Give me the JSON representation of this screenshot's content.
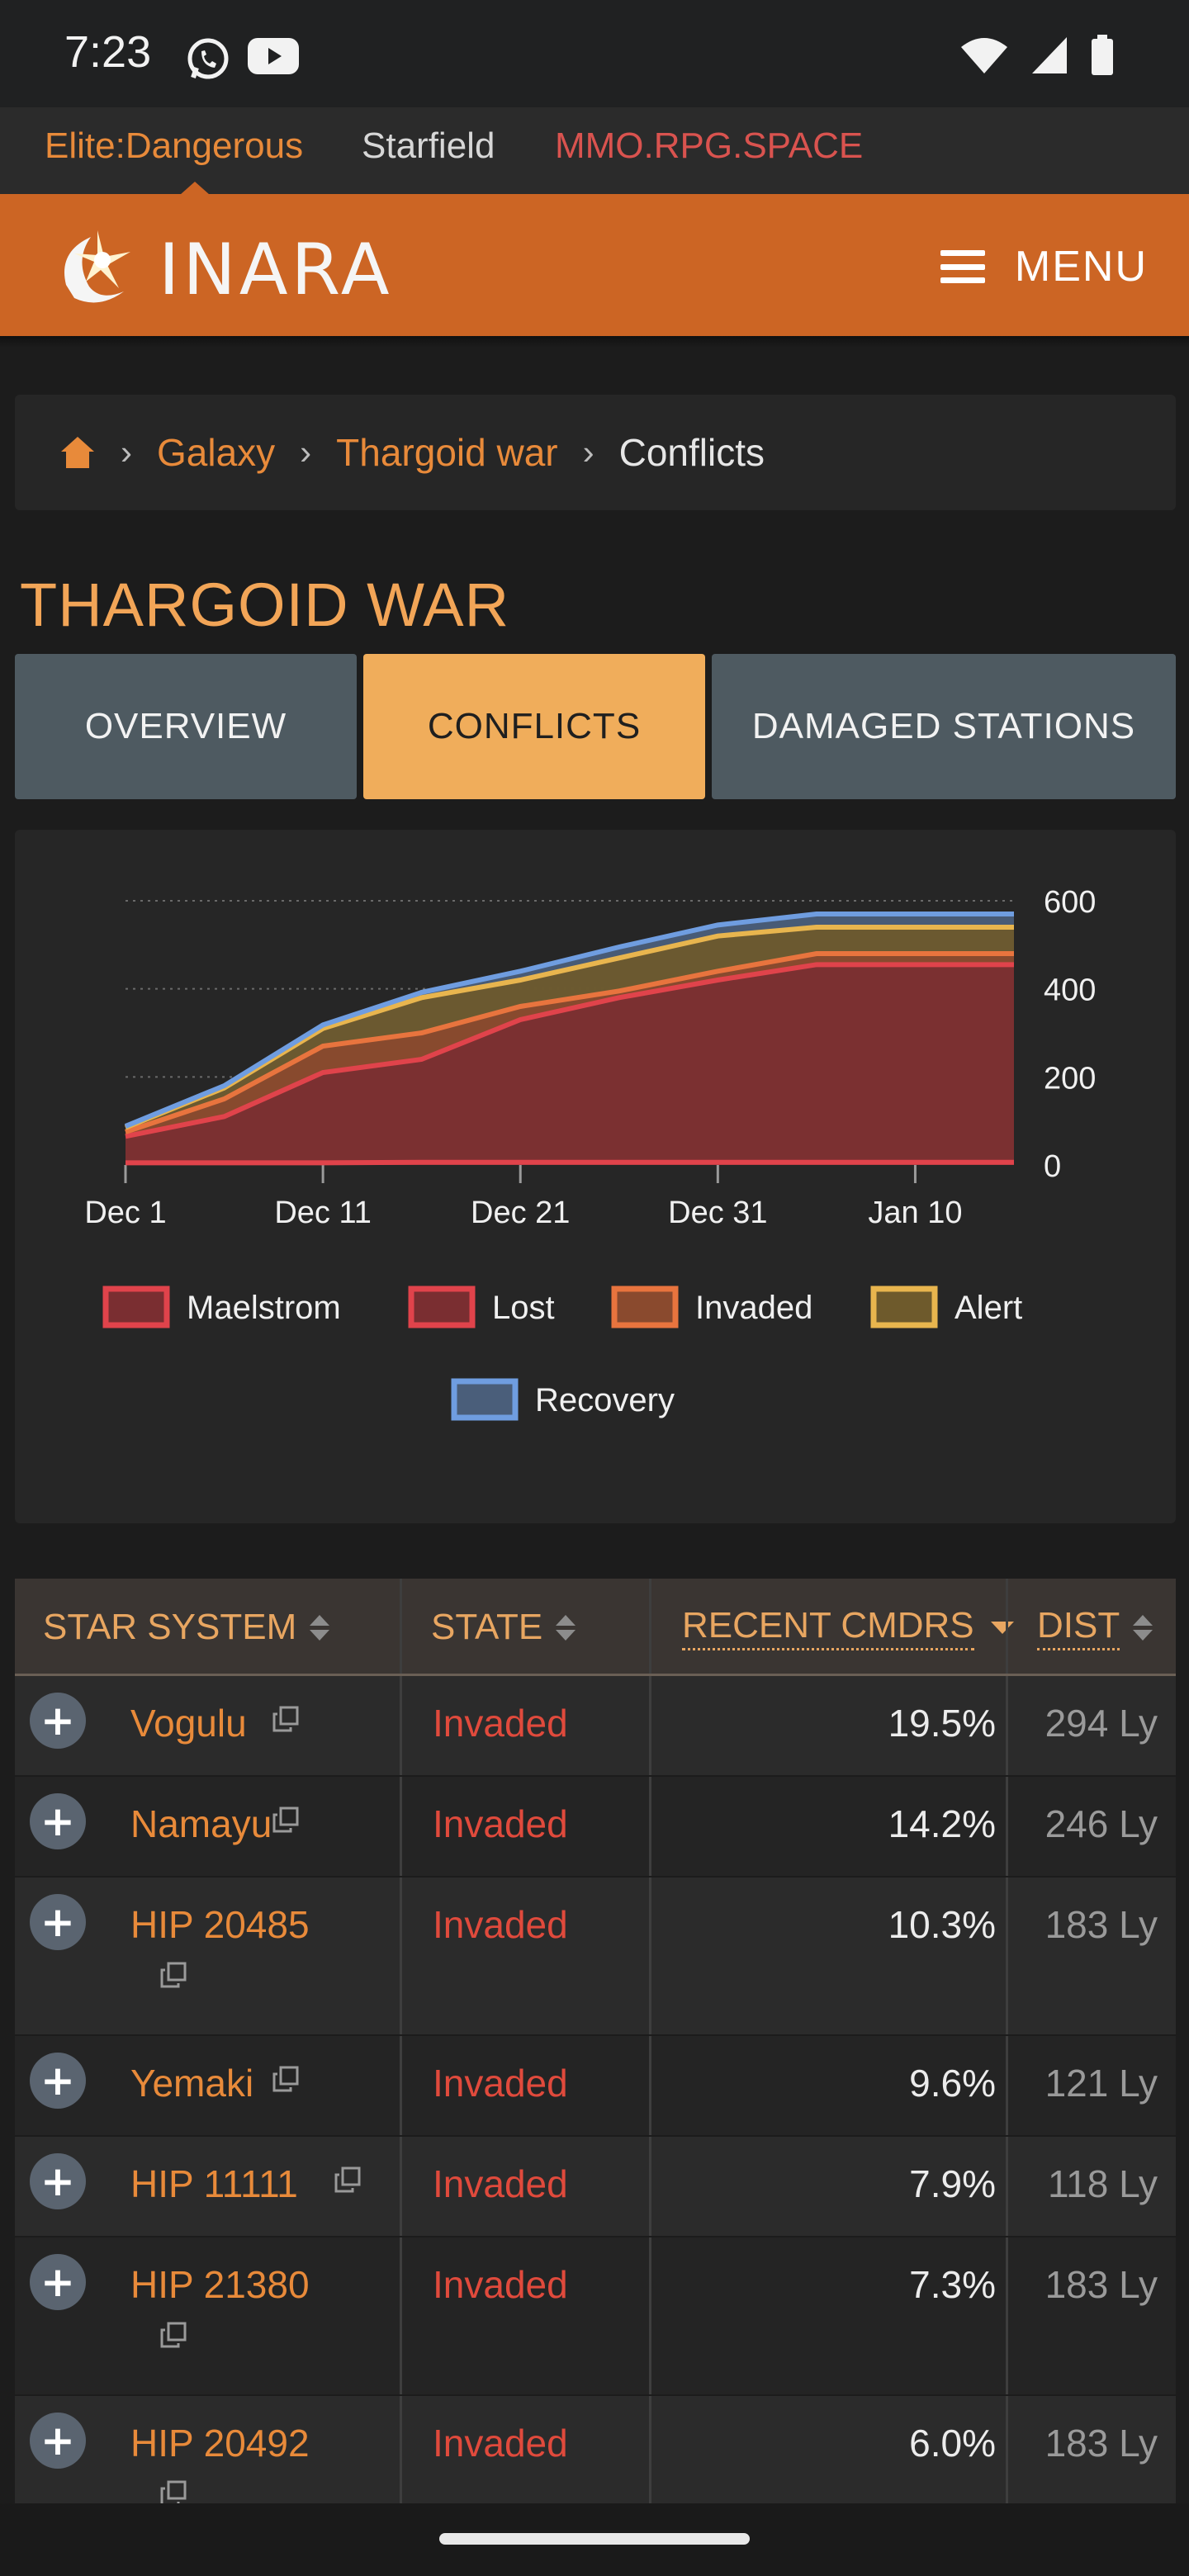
{
  "status_bar": {
    "time": "7:23",
    "icons": [
      "whatsapp-icon",
      "youtube-icon",
      "wifi-icon",
      "signal-icon",
      "battery-icon"
    ]
  },
  "sites": {
    "items": [
      "Elite:Dangerous",
      "Starfield",
      "MMO.RPG.SPACE"
    ],
    "active": "Elite:Dangerous"
  },
  "header": {
    "logo_text": "INARA",
    "menu_label": "MENU",
    "color": "#cc6524"
  },
  "breadcrumb": {
    "home_icon": "home-icon",
    "items": [
      "Galaxy",
      "Thargoid war",
      "Conflicts"
    ]
  },
  "page_title": "THARGOID WAR",
  "tabs": {
    "items": [
      "OVERVIEW",
      "CONFLICTS",
      "DAMAGED STATIONS"
    ],
    "active": "CONFLICTS"
  },
  "chart_data": {
    "type": "area",
    "x": [
      "Dec 1",
      "Dec 6",
      "Dec 11",
      "Dec 16",
      "Dec 21",
      "Dec 26",
      "Dec 31",
      "Jan 5",
      "Jan 10",
      "Jan 11"
    ],
    "x_ticks": [
      "Dec 1",
      "Dec 11",
      "Dec 21",
      "Dec 31",
      "Jan 10"
    ],
    "y_ticks": [
      "0",
      "200",
      "400",
      "600"
    ],
    "ylim": [
      0,
      600
    ],
    "stacked_cumulative": true,
    "grid": true,
    "legend_position": "bottom",
    "series": [
      {
        "name": "Maelstrom",
        "color": "#e0434b",
        "values": [
          5,
          5,
          5,
          6,
          6,
          6,
          6,
          6,
          6,
          6
        ]
      },
      {
        "name": "Lost",
        "color": "#e0434b",
        "values": [
          65,
          110,
          210,
          240,
          330,
          380,
          420,
          455,
          455,
          455
        ]
      },
      {
        "name": "Invaded",
        "color": "#e8743e",
        "values": [
          75,
          150,
          270,
          300,
          360,
          395,
          440,
          480,
          480,
          480
        ]
      },
      {
        "name": "Alert",
        "color": "#e8b54e",
        "values": [
          85,
          175,
          310,
          380,
          420,
          470,
          520,
          540,
          540,
          540
        ]
      },
      {
        "name": "Recovery",
        "color": "#6f9de0",
        "values": [
          88,
          180,
          318,
          392,
          440,
          495,
          545,
          570,
          570,
          570
        ]
      }
    ]
  },
  "table": {
    "headers": {
      "system": "STAR SYSTEM",
      "state": "STATE",
      "recent": "RECENT CMDRS",
      "dist": "DIST"
    },
    "rows": [
      {
        "system": "Vogulu",
        "state": "Invaded",
        "recent": "19.5%",
        "dist": "294 Ly",
        "wrap": false
      },
      {
        "system": "Namayu",
        "state": "Invaded",
        "recent": "14.2%",
        "dist": "246 Ly",
        "wrap": false
      },
      {
        "system": "HIP 20485",
        "state": "Invaded",
        "recent": "10.3%",
        "dist": "183 Ly",
        "wrap": true
      },
      {
        "system": "Yemaki",
        "state": "Invaded",
        "recent": "9.6%",
        "dist": "121 Ly",
        "wrap": false
      },
      {
        "system": "HIP 11111",
        "state": "Invaded",
        "recent": "7.9%",
        "dist": "118 Ly",
        "wrap": false
      },
      {
        "system": "HIP 21380",
        "state": "Invaded",
        "recent": "7.3%",
        "dist": "183 Ly",
        "wrap": true
      },
      {
        "system": "HIP 20492",
        "state": "Invaded",
        "recent": "6.0%",
        "dist": "183 Ly",
        "wrap": true
      }
    ]
  }
}
